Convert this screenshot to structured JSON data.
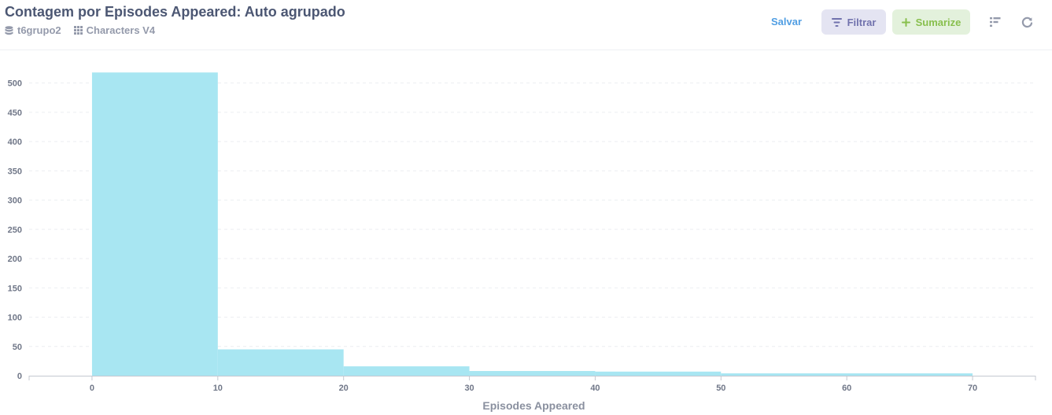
{
  "header": {
    "title": "Contagem por Episodes Appeared: Auto agrupado",
    "database": "t6grupo2",
    "table": "Characters V4"
  },
  "actions": {
    "save_label": "Salvar",
    "filter_label": "Filtrar",
    "summarize_label": "Sumarize"
  },
  "colors": {
    "bar": "#a8e6f2",
    "filter_bg": "#e4e4f2",
    "filter_fg": "#7172ad",
    "summarize_bg": "#e3f1dc",
    "summarize_fg": "#88bf4d",
    "save": "#509ee3"
  },
  "chart_data": {
    "type": "bar",
    "xlabel": "Episodes Appeared",
    "ylabel": "",
    "bins": [
      [
        0,
        10
      ],
      [
        10,
        20
      ],
      [
        20,
        30
      ],
      [
        30,
        40
      ],
      [
        40,
        50
      ],
      [
        50,
        70
      ]
    ],
    "values": [
      518,
      45,
      16,
      8,
      7,
      4
    ],
    "xticks": [
      0,
      10,
      20,
      30,
      40,
      50,
      60,
      70
    ],
    "yticks": [
      0,
      50,
      100,
      150,
      200,
      250,
      300,
      350,
      400,
      450,
      500
    ],
    "xlim": [
      -5,
      75
    ],
    "ylim": [
      0,
      525
    ],
    "grid": "horizontal-dashed"
  }
}
